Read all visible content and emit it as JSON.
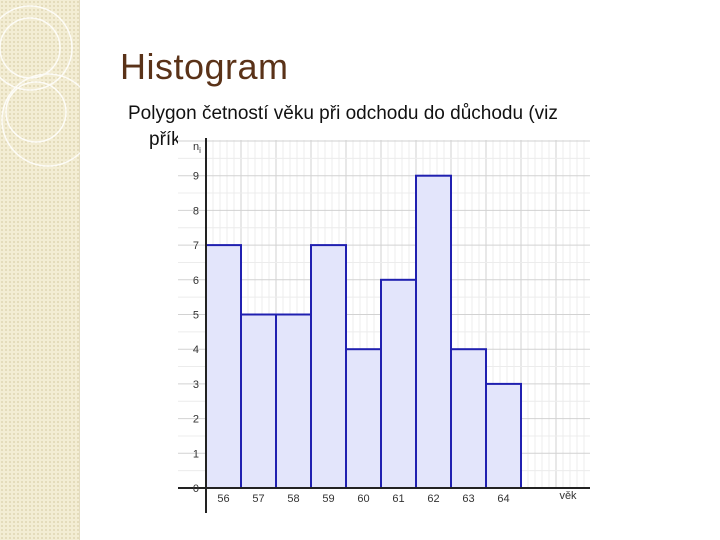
{
  "slide": {
    "title": "Histogram",
    "subtitle_line1": "Polygon četností věku při odchodu do důchodu (viz",
    "subtitle_line2": "přík"
  },
  "colors": {
    "bar_fill": "#e3e5fb",
    "bar_stroke": "#2020b0",
    "title": "#5a3218",
    "sidebar": "#f3edd4"
  },
  "chart_data": {
    "type": "bar",
    "categories": [
      "56",
      "57",
      "58",
      "59",
      "60",
      "61",
      "62",
      "63",
      "64"
    ],
    "values": [
      7,
      5,
      5,
      7,
      4,
      6,
      9,
      4,
      3
    ],
    "xlabel": "věk",
    "ylabel": "ni",
    "ylim": [
      0,
      10
    ],
    "yticks": [
      "0",
      "1",
      "2",
      "3",
      "4",
      "5",
      "6",
      "7",
      "8",
      "9"
    ],
    "grid": true
  }
}
